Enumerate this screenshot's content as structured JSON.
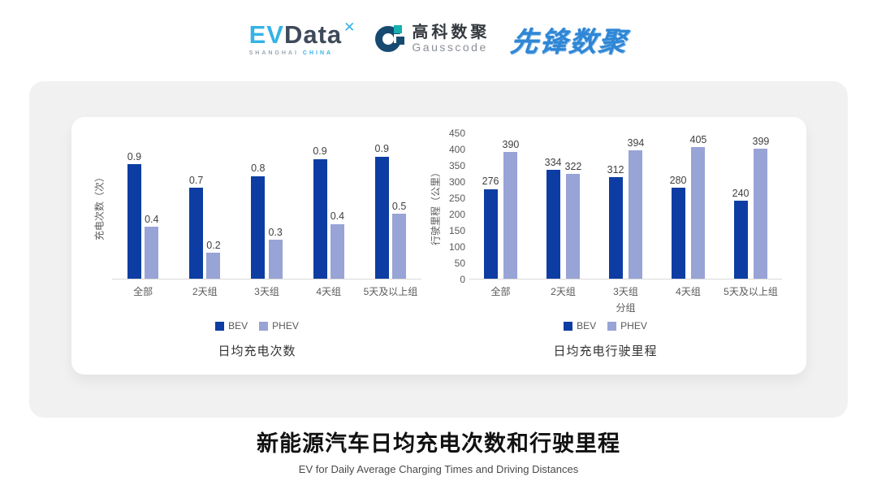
{
  "header": {
    "evdata": {
      "part1": "EV",
      "part2": "Data",
      "mark": "✕",
      "sub_gray": "SHANGHAI",
      "sub_blue": "CHINA"
    },
    "gausscode": {
      "cn": "高科数聚",
      "en": "Gausscode"
    },
    "pioneer": {
      "text": "先锋数聚"
    }
  },
  "colors": {
    "bev": "#0d3da3",
    "phev": "#98a3d6",
    "axis_line": "#d9d9d9",
    "tick_text": "#595959",
    "value_text": "#404040",
    "panel_bg": "#f1f1f1",
    "evdata_blue": "#35b3e7",
    "evdata_dark": "#3d4a5a",
    "gausscode_navy": "#174a70",
    "gausscode_teal": "#14b1b1",
    "pioneer_blue": "#2e86d5"
  },
  "chart_data": [
    {
      "type": "bar",
      "title": "日均充电次数",
      "ylabel": "充电次数（次）",
      "xlabel": "",
      "categories": [
        "全部",
        "2天组",
        "3天组",
        "4天组",
        "5天及以上组"
      ],
      "series": [
        {
          "name": "BEV",
          "color": "#0d3da3",
          "values": [
            0.9,
            0.7,
            0.8,
            0.9,
            0.9
          ],
          "values_precise": [
            0.88,
            0.7,
            0.79,
            0.92,
            0.94
          ]
        },
        {
          "name": "PHEV",
          "color": "#98a3d6",
          "values": [
            0.4,
            0.2,
            0.3,
            0.4,
            0.5
          ],
          "values_precise": [
            0.4,
            0.2,
            0.3,
            0.42,
            0.5
          ]
        }
      ],
      "ylim": [
        0,
        1.125
      ],
      "yticks": [],
      "grid": false,
      "legend_position": "bottom"
    },
    {
      "type": "bar",
      "title": "日均充电行驶里程",
      "ylabel": "行驶里程（公里）",
      "xlabel": "分组",
      "categories": [
        "全部",
        "2天组",
        "3天组",
        "4天组",
        "5天及以上组"
      ],
      "series": [
        {
          "name": "BEV",
          "color": "#0d3da3",
          "values": [
            276,
            334,
            312,
            280,
            240
          ]
        },
        {
          "name": "PHEV",
          "color": "#98a3d6",
          "values": [
            390,
            322,
            394,
            405,
            399
          ]
        }
      ],
      "ylim": [
        0,
        450
      ],
      "yticks": [
        450,
        400,
        350,
        300,
        250,
        200,
        150,
        100,
        50,
        0
      ],
      "grid": false,
      "legend_position": "bottom"
    }
  ],
  "footer": {
    "title": "新能源汽车日均充电次数和行驶里程",
    "subtitle": "EV for Daily Average Charging Times and Driving Distances"
  }
}
